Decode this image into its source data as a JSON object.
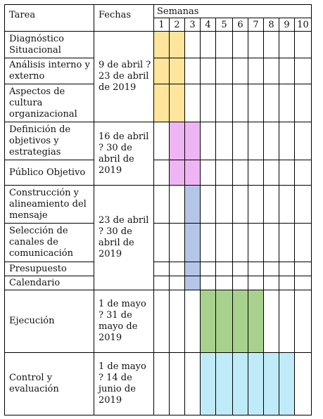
{
  "header": {
    "task": "Tarea",
    "dates": "Fechas",
    "weeks": "Semanas",
    "week_numbers": [
      "1",
      "2",
      "3",
      "4",
      "5",
      "6",
      "7",
      "8",
      "9",
      "10"
    ]
  },
  "colors": {
    "yellow": "#ffe49c",
    "pink": "#eeb4f3",
    "blue": "#b4c6e7",
    "green": "#a9d18e",
    "cyan": "#bfeaf7"
  },
  "groups": [
    {
      "dates": "9 de abril ? 23 de abril de 2019"
    },
    {
      "dates": "16 de abril ? 30 de abril de 2019"
    },
    {
      "dates": "23 de abril ? 30 de abril de 2019"
    },
    {
      "dates": "1 de mayo ? 31 de mayo de 2019"
    },
    {
      "dates": "1 de mayo ? 14 de junio de 2019"
    }
  ],
  "tasks": [
    {
      "name": "Diagnóstico Situacional",
      "weeks": [
        1,
        2
      ],
      "color": "#ffe49c"
    },
    {
      "name": "Análisis interno y externo",
      "weeks": [
        1,
        2
      ],
      "color": "#ffe49c"
    },
    {
      "name": "Aspectos de cultura organizacional",
      "weeks": [
        1,
        2
      ],
      "color": "#ffe49c"
    },
    {
      "name": "Definición de objetivos y estrategias",
      "weeks": [
        2,
        3
      ],
      "color": "#eeb4f3"
    },
    {
      "name": "Público Objetivo",
      "weeks": [
        2,
        3
      ],
      "color": "#eeb4f3"
    },
    {
      "name": "Construcción y alineamiento del mensaje",
      "weeks": [
        3
      ],
      "color": "#b4c6e7"
    },
    {
      "name": "Selección de canales de comunicación",
      "weeks": [
        3
      ],
      "color": "#b4c6e7"
    },
    {
      "name": "Presupuesto",
      "weeks": [
        3
      ],
      "color": "#b4c6e7"
    },
    {
      "name": "Calendario",
      "weeks": [
        3
      ],
      "color": "#b4c6e7"
    },
    {
      "name": "Ejecución",
      "weeks": [
        4,
        5,
        6,
        7
      ],
      "color": "#a9d18e"
    },
    {
      "name": "Control y evaluación",
      "weeks": [
        4,
        5,
        6,
        7,
        8,
        9
      ],
      "color": "#bfeaf7"
    }
  ]
}
